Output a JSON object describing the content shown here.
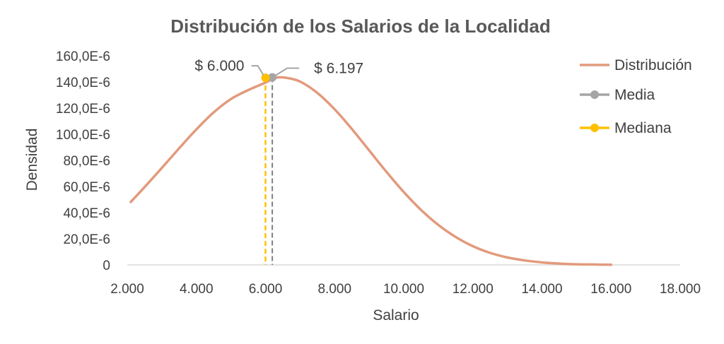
{
  "chart_data": {
    "type": "line",
    "title": "Distribución de los Salarios de la Localidad",
    "xlabel": "Salario",
    "ylabel": "Densidad",
    "xlim": [
      2000,
      18000
    ],
    "ylim": [
      0,
      0.00016
    ],
    "x_ticks": [
      2000,
      4000,
      6000,
      8000,
      10000,
      12000,
      14000,
      16000,
      18000
    ],
    "x_tick_labels": [
      "2.000",
      "4.000",
      "6.000",
      "8.000",
      "10.000",
      "12.000",
      "14.000",
      "16.000",
      "18.000"
    ],
    "y_ticks": [
      0,
      2e-05,
      4e-05,
      6e-05,
      8e-05,
      0.0001,
      0.00012,
      0.00014,
      0.00016
    ],
    "y_tick_labels": [
      "0",
      "20,0E-6",
      "40,0E-6",
      "60,0E-6",
      "80,0E-6",
      "100,0E-6",
      "120,0E-6",
      "140,0E-6",
      "160,0E-6"
    ],
    "grid": false,
    "legend_position": "right",
    "series": [
      {
        "name": "Distribución",
        "color": "#e29a7c",
        "x": [
          2100,
          2500,
          3000,
          3500,
          4000,
          4500,
          5000,
          5500,
          6000,
          6300,
          6600,
          7000,
          7500,
          8000,
          8500,
          9000,
          9500,
          10000,
          10500,
          11000,
          11500,
          12000,
          12500,
          13000,
          13500,
          14000,
          14500,
          15000,
          15500,
          16000
        ],
        "y": [
          4.81e-05,
          5.95e-05,
          7.42e-05,
          8.92e-05,
          0.0001037,
          0.0001167,
          0.0001269,
          0.0001338,
          0.0001395,
          0.0001433,
          0.0001432,
          0.0001403,
          0.0001316,
          0.0001191,
          0.000104,
          8.76e-05,
          7.12e-05,
          5.58e-05,
          4.21e-05,
          3.06e-05,
          2.14e-05,
          1.43e-05,
          9.2e-06,
          5.7e-06,
          3.4e-06,
          1.9e-06,
          1e-06,
          5e-07,
          3e-07,
          1e-07
        ]
      },
      {
        "name": "Media",
        "color": "#a5a5a5",
        "x": [
          6197
        ],
        "y": [
          0.0001435
        ]
      },
      {
        "name": "Mediana",
        "color": "#ffc000",
        "x": [
          6000
        ],
        "y": [
          0.0001432
        ]
      }
    ],
    "annotations": {
      "median_label": "$ 6.000",
      "mean_label": "$ 6.197"
    }
  }
}
